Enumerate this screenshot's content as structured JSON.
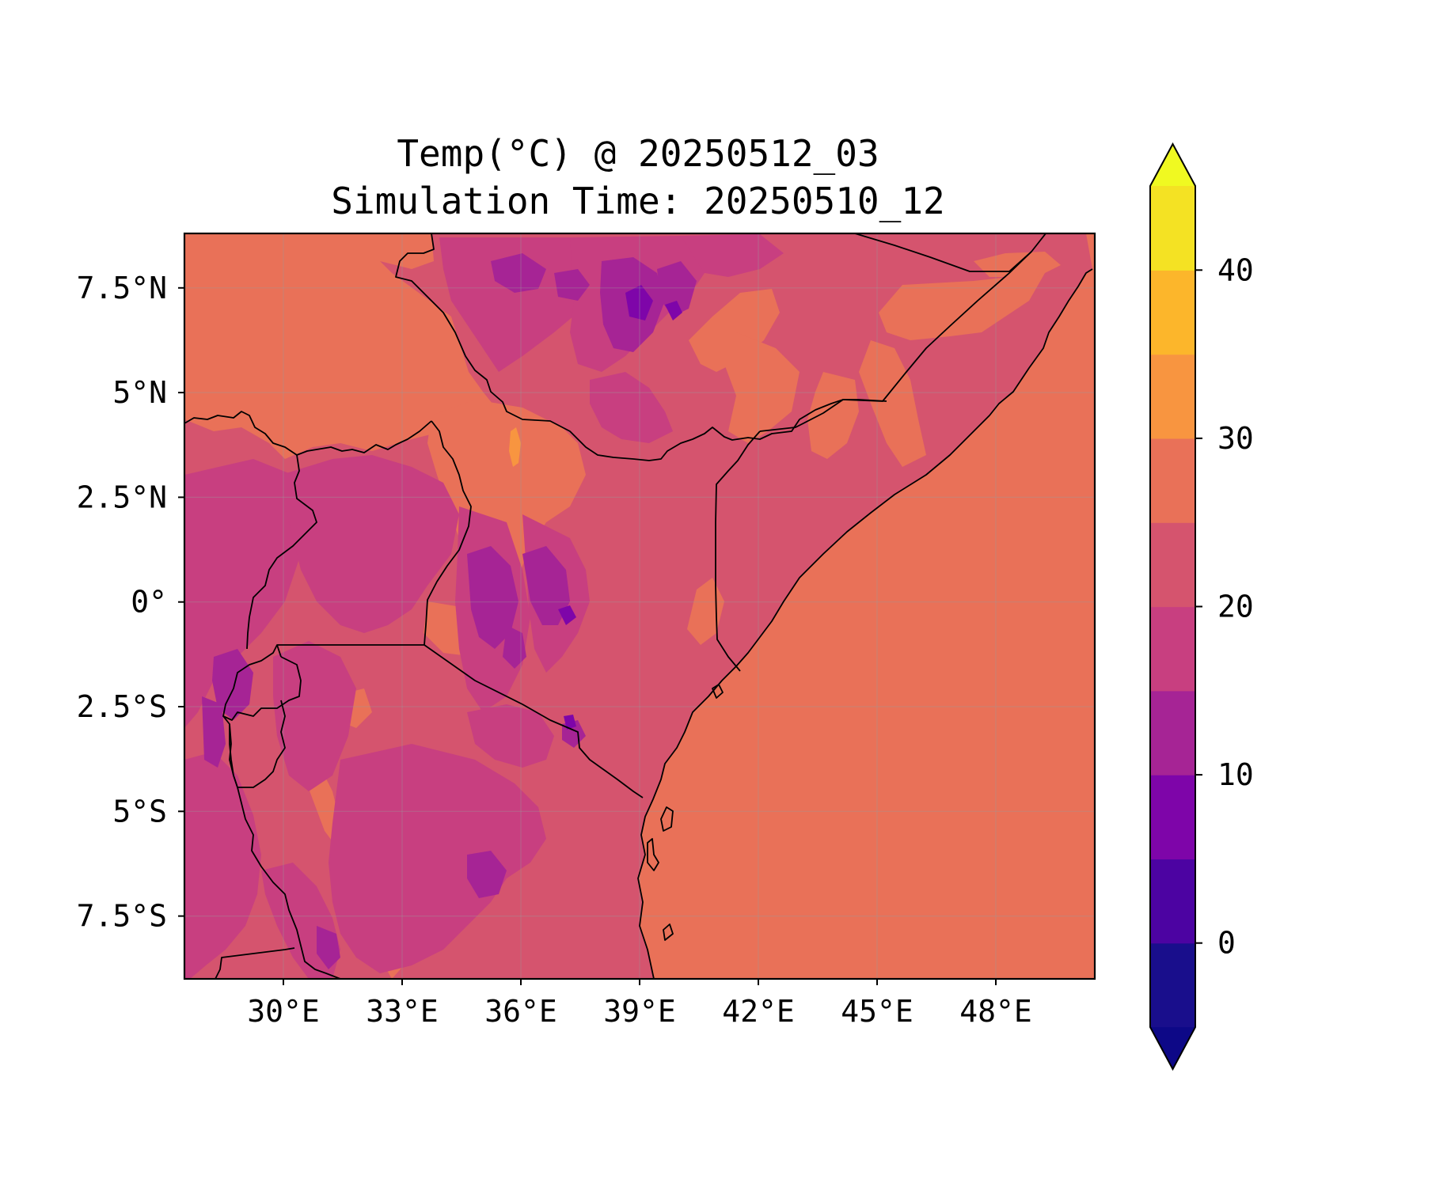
{
  "map": {
    "title_line1": "Temp(°C) @ 20250512_03",
    "title_line2": "Simulation Time: 20250510_12",
    "lon_range": [
      27.5,
      50.5
    ],
    "lat_range": [
      -9.0,
      8.8
    ],
    "x_ticks": [
      {
        "value": 30,
        "label": "30°E"
      },
      {
        "value": 33,
        "label": "33°E"
      },
      {
        "value": 36,
        "label": "36°E"
      },
      {
        "value": 39,
        "label": "39°E"
      },
      {
        "value": 42,
        "label": "42°E"
      },
      {
        "value": 45,
        "label": "45°E"
      },
      {
        "value": 48,
        "label": "48°E"
      }
    ],
    "y_ticks": [
      {
        "value": 7.5,
        "label": "7.5°N"
      },
      {
        "value": 5,
        "label": "5°N"
      },
      {
        "value": 2.5,
        "label": "2.5°N"
      },
      {
        "value": 0,
        "label": "0°"
      },
      {
        "value": -2.5,
        "label": "2.5°S"
      },
      {
        "value": -5,
        "label": "5°S"
      },
      {
        "value": -7.5,
        "label": "7.5°S"
      }
    ],
    "grid": true,
    "land_base_color": "#d5546e",
    "ocean_color": "#e97158",
    "border_color": "#000000"
  },
  "colorbar": {
    "colormap": "plasma",
    "levels": [
      -5,
      0,
      5,
      10,
      15,
      20,
      25,
      30,
      35,
      40,
      45
    ],
    "colors": [
      "#170b87",
      "#4b03a1",
      "#7d03a8",
      "#a82296",
      "#cb4679",
      "#e56b5d",
      "#f89441",
      "#fdc328",
      "#f0f921"
    ],
    "band_colors": [
      "#190e8c",
      "#4c03a2",
      "#7e05a9",
      "#a62495",
      "#c83f80",
      "#d5546e",
      "#e97158",
      "#f89540",
      "#fcb62b",
      "#f4e223"
    ],
    "under_color": "#0d0887",
    "over_color": "#f0f921",
    "extend": "both",
    "ticks": [
      {
        "value": 0,
        "label": "0"
      },
      {
        "value": 10,
        "label": "10"
      },
      {
        "value": 20,
        "label": "20"
      },
      {
        "value": 30,
        "label": "30"
      },
      {
        "value": 40,
        "label": "40"
      }
    ]
  }
}
